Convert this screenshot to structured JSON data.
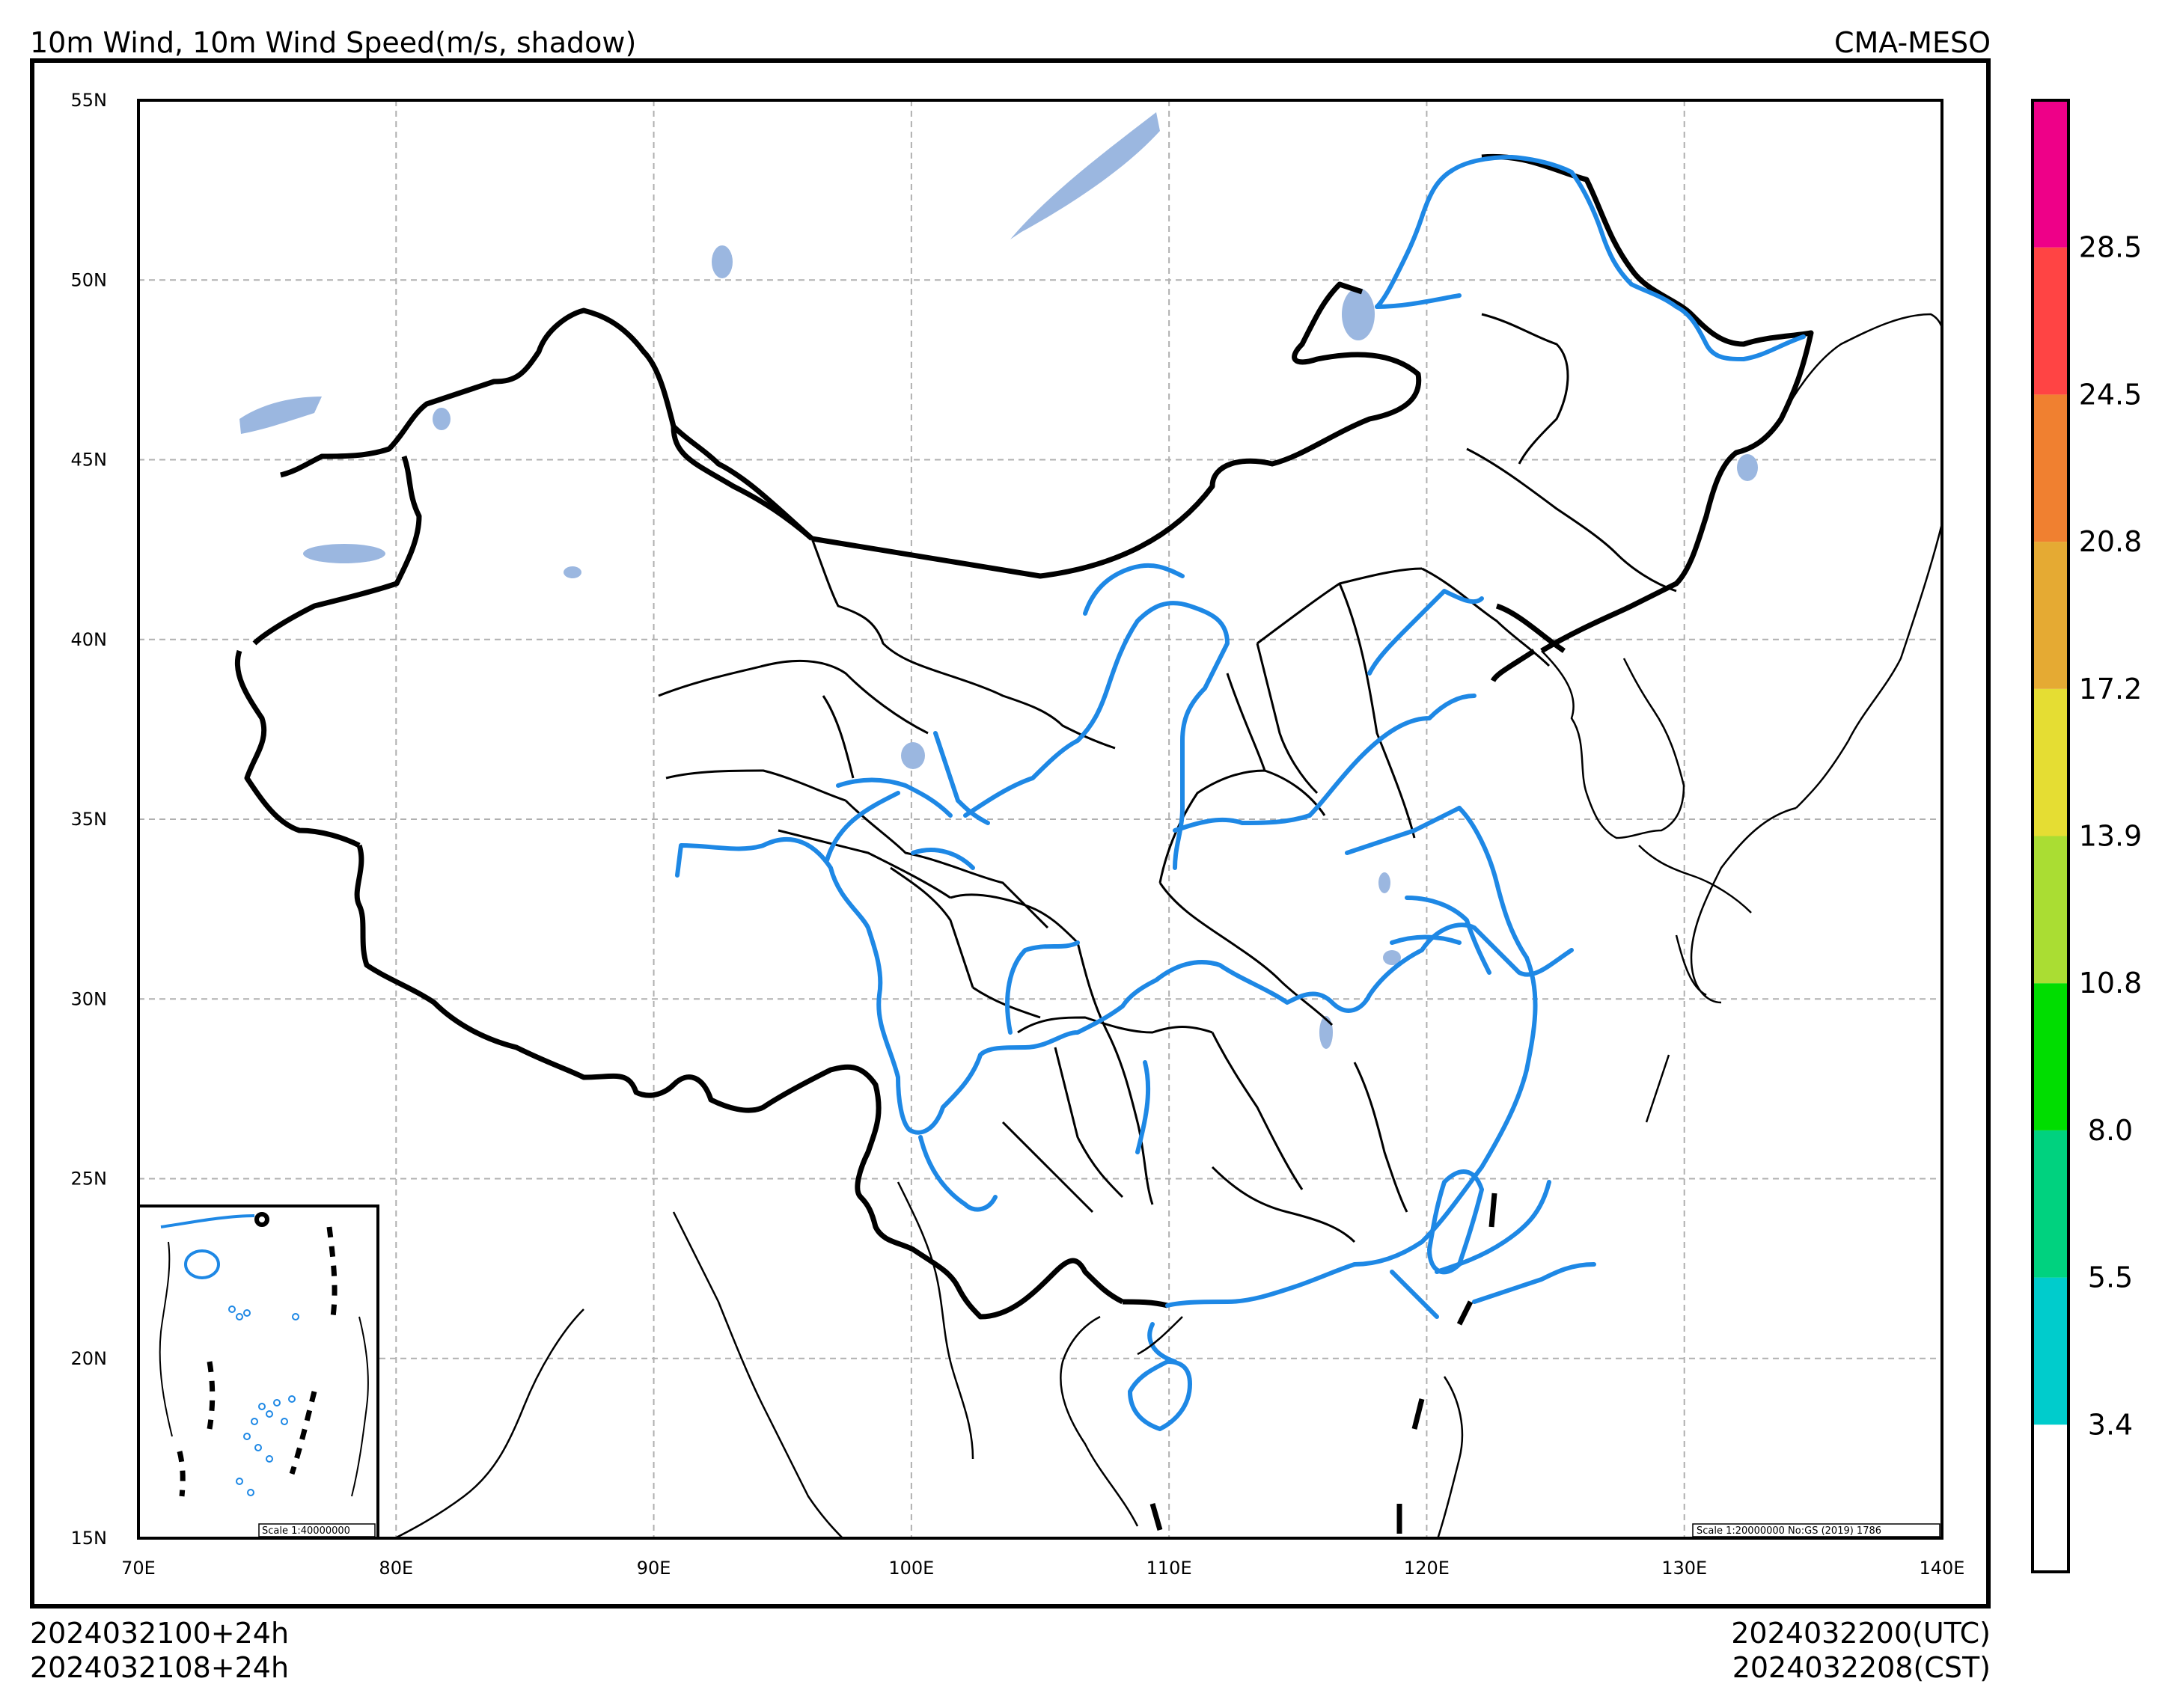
{
  "header": {
    "title": "10m Wind, 10m Wind Speed(m/s, shadow)",
    "source": "CMA-MESO"
  },
  "footer": {
    "init_utc": "2024032100+24h",
    "init_cst": "2024032108+24h",
    "valid_utc": "2024032200(UTC)",
    "valid_cst": "2024032208(CST)"
  },
  "map": {
    "lon_ticks": [
      "70E",
      "80E",
      "90E",
      "100E",
      "110E",
      "120E",
      "130E",
      "140E"
    ],
    "lat_ticks": [
      "55N",
      "50N",
      "45N",
      "40N",
      "35N",
      "30N",
      "25N",
      "20N",
      "15N"
    ],
    "lon_range": [
      70,
      140
    ],
    "lat_range": [
      15,
      55
    ],
    "grid": true,
    "scale_main": "Scale 1:20000000 No:GS (2019) 1786",
    "scale_inset": "Scale 1:40000000",
    "colors": {
      "border": "#000000",
      "rivers": "#1e88e5",
      "lakes": "#9bb7e0",
      "grid": "#b0b0b0"
    }
  },
  "colorbar": {
    "labels": [
      "3.4",
      "5.5",
      "8.0",
      "10.8",
      "13.9",
      "17.2",
      "20.8",
      "24.5",
      "28.5"
    ],
    "colors": [
      "#ffffff",
      "#00cccc",
      "#00d27f",
      "#00dd00",
      "#aadd33",
      "#e5dd33",
      "#e5aa33",
      "#f08030",
      "#ff4444",
      "#ee0088"
    ]
  }
}
